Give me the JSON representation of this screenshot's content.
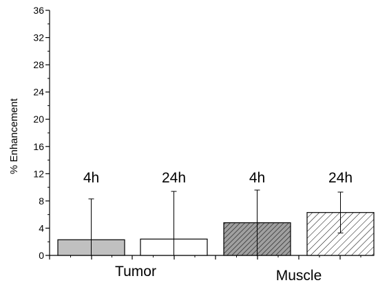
{
  "chart_data": {
    "type": "bar",
    "title": "",
    "ylabel": "% Enhancement",
    "xlabel": "",
    "ylim": [
      0,
      36
    ],
    "yticks": [
      0,
      4,
      8,
      12,
      16,
      20,
      24,
      28,
      32,
      36
    ],
    "grid": false,
    "groups": [
      "Tumor",
      "Muscle"
    ],
    "bars": [
      {
        "group": "Tumor",
        "label": "4h",
        "value": 2.3,
        "error_low": 0,
        "error_high": 8.3,
        "fill": "#c0c0c0",
        "pattern": "solid"
      },
      {
        "group": "Tumor",
        "label": "24h",
        "value": 2.4,
        "error_low": 0,
        "error_high": 9.4,
        "fill": "#ffffff",
        "pattern": "solid"
      },
      {
        "group": "Muscle",
        "label": "4h",
        "value": 4.8,
        "error_low": 0,
        "error_high": 9.6,
        "fill": "#a0a0a0",
        "pattern": "dense-diagonal-hatch"
      },
      {
        "group": "Muscle",
        "label": "24h",
        "value": 6.3,
        "error_low": 3.3,
        "error_high": 9.3,
        "fill": "#ffffff",
        "pattern": "diagonal-hatch"
      }
    ]
  }
}
